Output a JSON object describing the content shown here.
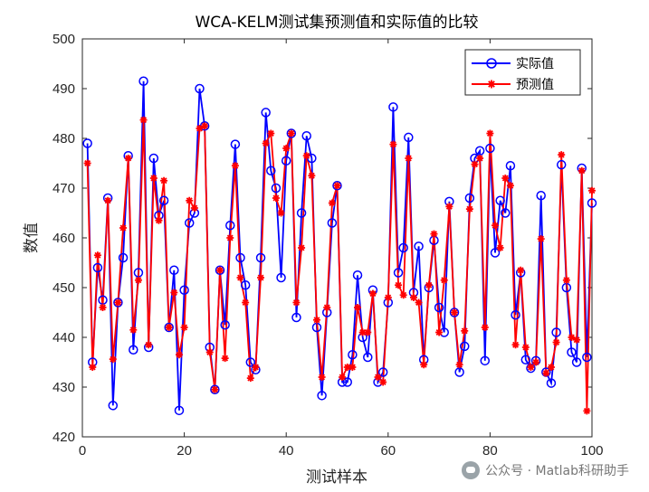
{
  "chart_data": {
    "type": "line",
    "title": "WCA-KELM测试集预测值和实际值的比较",
    "xlabel": "测试样本",
    "ylabel": "数值",
    "xlim": [
      0,
      100
    ],
    "ylim": [
      420,
      500
    ],
    "xticks": [
      0,
      20,
      40,
      60,
      80,
      100
    ],
    "yticks": [
      420,
      430,
      440,
      450,
      460,
      470,
      480,
      490,
      500
    ],
    "legend_position": "top-right",
    "x": [
      1,
      2,
      3,
      4,
      5,
      6,
      7,
      8,
      9,
      10,
      11,
      12,
      13,
      14,
      15,
      16,
      17,
      18,
      19,
      20,
      21,
      22,
      23,
      24,
      25,
      26,
      27,
      28,
      29,
      30,
      31,
      32,
      33,
      34,
      35,
      36,
      37,
      38,
      39,
      40,
      41,
      42,
      43,
      44,
      45,
      46,
      47,
      48,
      49,
      50,
      51,
      52,
      53,
      54,
      55,
      56,
      57,
      58,
      59,
      60,
      61,
      62,
      63,
      64,
      65,
      66,
      67,
      68,
      69,
      70,
      71,
      72,
      73,
      74,
      75,
      76,
      77,
      78,
      79,
      80,
      81,
      82,
      83,
      84,
      85,
      86,
      87,
      88,
      89,
      90,
      91,
      92,
      93,
      94,
      95,
      96,
      97,
      98,
      99,
      100
    ],
    "series": [
      {
        "name": "实际值",
        "color": "#0000ff",
        "marker": "circle",
        "values": [
          479,
          435,
          454,
          447.5,
          468,
          426.3,
          447,
          456,
          476.5,
          437.5,
          453,
          491.5,
          438,
          476,
          464.5,
          467.5,
          442,
          453.5,
          425.3,
          449.5,
          463,
          465,
          490,
          482.5,
          438,
          429.5,
          453.5,
          442.5,
          462.5,
          478.8,
          456,
          450.5,
          435,
          433.5,
          456,
          485.2,
          473.5,
          470,
          452,
          475.5,
          481,
          444,
          465,
          480.5,
          476,
          442,
          428.3,
          445,
          463,
          470.5,
          431,
          431,
          436.5,
          452.5,
          440,
          436,
          449.5,
          431,
          433,
          447,
          486.3,
          453,
          458,
          480.2,
          449,
          458.3,
          435.5,
          450,
          459.5,
          446,
          441,
          467.3,
          445,
          433,
          438.2,
          468,
          476,
          477.5,
          435.3,
          478,
          457,
          467.5,
          465,
          474.5,
          444.5,
          453,
          435.5,
          433.8,
          435.3,
          468.5,
          433,
          430.8,
          441,
          474.7,
          450,
          437,
          435,
          474,
          436,
          467
        ]
      },
      {
        "name": "预测值",
        "color": "#ff0000",
        "marker": "star",
        "values": [
          475,
          434,
          456.5,
          446,
          467.5,
          435.6,
          447,
          462,
          476,
          441.5,
          451.5,
          483.7,
          438.5,
          472,
          463.5,
          471.5,
          442,
          449,
          436.5,
          442,
          467.5,
          466,
          482,
          482.5,
          437,
          429.5,
          453.5,
          435.8,
          460,
          474.5,
          452,
          447,
          431.8,
          434,
          452,
          479,
          481,
          468,
          465,
          478,
          481,
          447,
          458,
          476.5,
          472.5,
          443.5,
          432,
          446,
          467,
          470.5,
          432,
          434,
          434,
          446,
          441,
          441,
          448.8,
          432,
          431,
          448,
          478.8,
          450.5,
          448.5,
          476,
          448,
          447,
          434.5,
          450.5,
          460.8,
          441,
          451.5,
          466.3,
          445,
          434.5,
          441.3,
          465.8,
          474.8,
          476,
          442,
          481,
          462.5,
          458,
          472,
          470.5,
          438.5,
          453.5,
          438,
          434,
          435,
          459.8,
          432.8,
          434,
          439,
          476.7,
          451.5,
          440,
          439.5,
          473.5,
          425.2,
          469.5
        ]
      }
    ]
  },
  "watermark": {
    "text": "公众号 · Matlab科研助手"
  }
}
